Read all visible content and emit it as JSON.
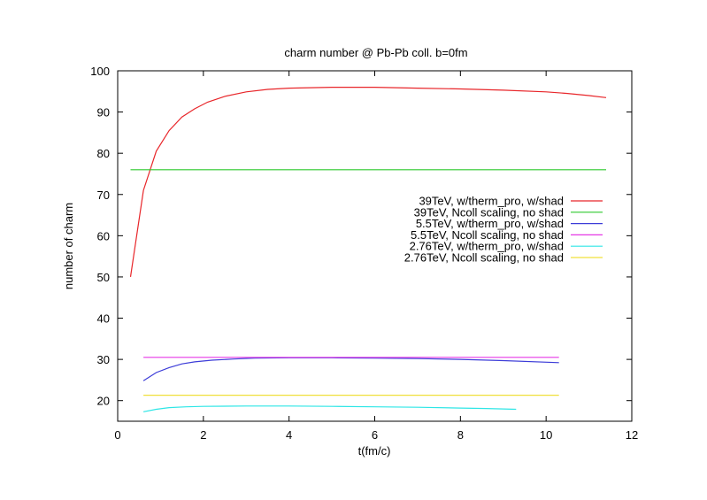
{
  "chart_data": {
    "type": "line",
    "title": "charm number @ Pb-Pb coll. b=0fm",
    "xlabel": "t(fm/c)",
    "ylabel": "number of charm",
    "xlim": [
      0,
      12
    ],
    "ylim": [
      15,
      100
    ],
    "xticks": [
      0,
      2,
      4,
      6,
      8,
      10,
      12
    ],
    "yticks": [
      20,
      30,
      40,
      50,
      60,
      70,
      80,
      90,
      100
    ],
    "grid": false,
    "legend_position": "right",
    "series": [
      {
        "name": "39TeV, w/therm_pro, w/shad",
        "color": "#e8262a",
        "x": [
          0.3,
          0.6,
          0.9,
          1.2,
          1.5,
          1.8,
          2.1,
          2.5,
          3.0,
          3.5,
          4.0,
          5.0,
          6.0,
          7.0,
          8.0,
          9.0,
          10.0,
          10.5,
          11.0,
          11.4
        ],
        "y": [
          50,
          71,
          80.5,
          85.5,
          88.8,
          90.8,
          92.4,
          93.8,
          94.9,
          95.5,
          95.8,
          96.0,
          96.0,
          95.8,
          95.6,
          95.3,
          94.9,
          94.5,
          94.0,
          93.5
        ]
      },
      {
        "name": "39TeV, Ncoll scaling, no shad",
        "color": "#2cc82c",
        "x": [
          0.3,
          11.4
        ],
        "y": [
          76,
          76
        ]
      },
      {
        "name": "5.5TeV, w/therm_pro, w/shad",
        "color": "#3c3cd8",
        "x": [
          0.6,
          0.9,
          1.2,
          1.5,
          1.8,
          2.2,
          2.7,
          3.2,
          4.0,
          5.0,
          6.0,
          7.0,
          8.0,
          9.0,
          10.3
        ],
        "y": [
          24.8,
          26.8,
          28.0,
          28.9,
          29.4,
          29.8,
          30.1,
          30.3,
          30.4,
          30.4,
          30.3,
          30.2,
          30.0,
          29.7,
          29.2
        ]
      },
      {
        "name": "5.5TeV, Ncoll scaling, no shad",
        "color": "#e638e6",
        "x": [
          0.6,
          10.3
        ],
        "y": [
          30.5,
          30.5
        ]
      },
      {
        "name": "2.76TeV, w/therm_pro, w/shad",
        "color": "#2ee6e6",
        "x": [
          0.6,
          0.9,
          1.2,
          1.6,
          2.0,
          3.0,
          4.0,
          5.0,
          6.0,
          7.0,
          8.0,
          8.6,
          9.3
        ],
        "y": [
          17.3,
          17.9,
          18.3,
          18.5,
          18.6,
          18.7,
          18.7,
          18.6,
          18.5,
          18.4,
          18.2,
          18.1,
          17.9
        ]
      },
      {
        "name": "2.76TeV, Ncoll scaling, no shad",
        "color": "#f0e03a",
        "x": [
          0.6,
          10.3
        ],
        "y": [
          21.3,
          21.3
        ]
      }
    ]
  }
}
